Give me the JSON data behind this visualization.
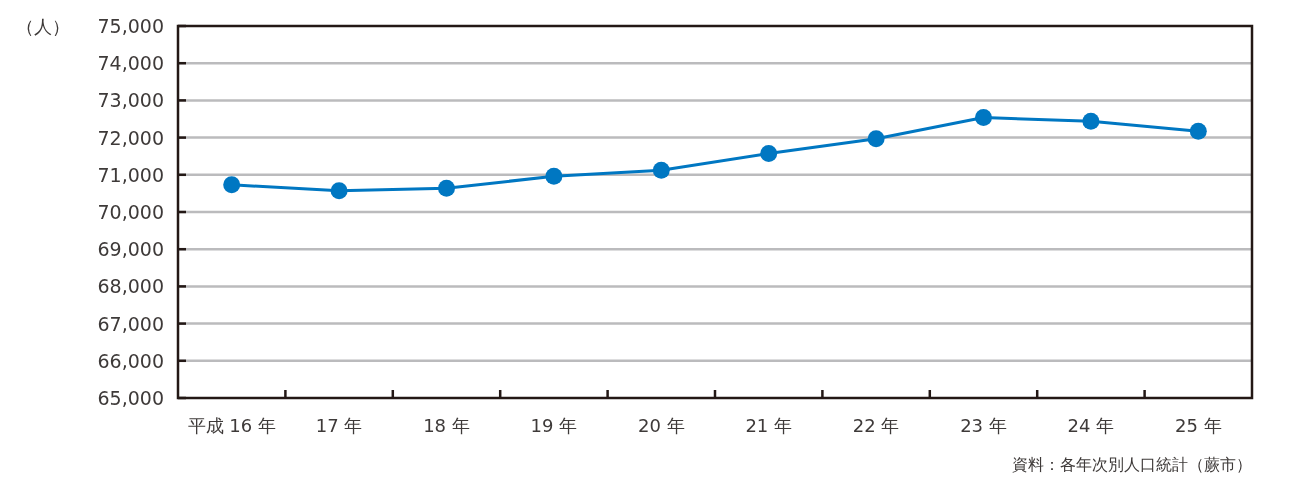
{
  "chart_data": {
    "type": "line",
    "ylabel": "（人）",
    "categories": [
      "平成 16 年",
      "17 年",
      "18 年",
      "19 年",
      "20 年",
      "21 年",
      "22 年",
      "23 年",
      "24 年",
      "25 年"
    ],
    "series": [
      {
        "color": "#0077c2",
        "values": [
          70730,
          70570,
          70640,
          70960,
          71120,
          71570,
          71970,
          72540,
          72440,
          72170
        ]
      }
    ],
    "ylim": [
      65000,
      75000
    ],
    "yticks": [
      {
        "value": 65000,
        "label": "65,000"
      },
      {
        "value": 66000,
        "label": "66,000"
      },
      {
        "value": 67000,
        "label": "67,000"
      },
      {
        "value": 68000,
        "label": "68,000"
      },
      {
        "value": 69000,
        "label": "69,000"
      },
      {
        "value": 70000,
        "label": "70,000"
      },
      {
        "value": 71000,
        "label": "71,000"
      },
      {
        "value": 72000,
        "label": "72,000"
      },
      {
        "value": 73000,
        "label": "73,000"
      },
      {
        "value": 74000,
        "label": "74,000"
      },
      {
        "value": 75000,
        "label": "75,000"
      }
    ],
    "grid": "y",
    "marker": "circle",
    "line_style": "solid",
    "annotations": [
      "資料：各年次別人口統計（蕨市）"
    ]
  }
}
